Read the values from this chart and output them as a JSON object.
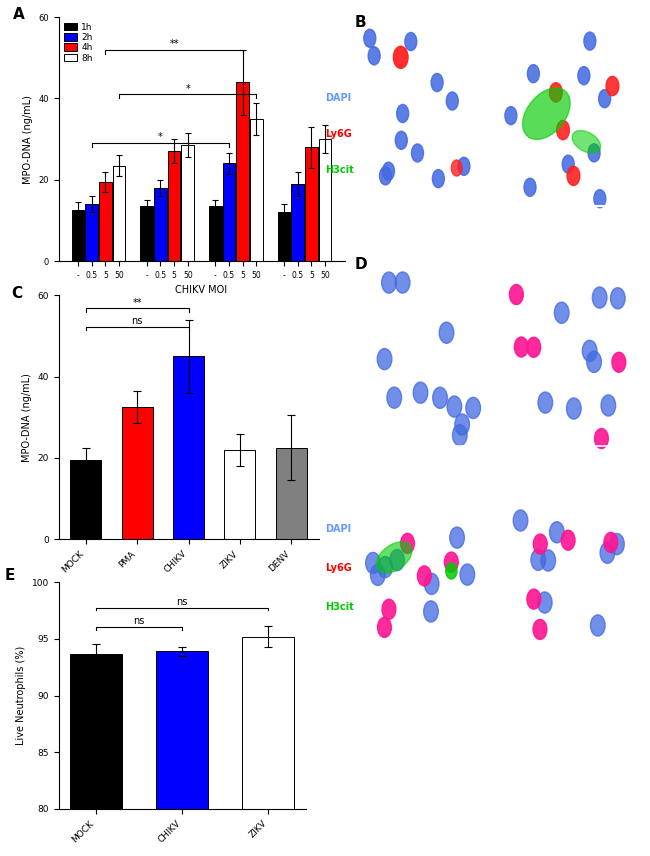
{
  "panel_A": {
    "title": "A",
    "groups": [
      {
        "label": "-",
        "time": "1h",
        "value": 12.5,
        "err": 2.0
      },
      {
        "label": "0.5",
        "time": "1h",
        "value": 13.5,
        "err": 1.5
      },
      {
        "label": "5",
        "time": "1h",
        "value": 13.5,
        "err": 1.5
      },
      {
        "label": "50",
        "time": "1h",
        "value": 12.0,
        "err": 2.0
      },
      {
        "label": "-",
        "time": "2h",
        "value": 14.0,
        "err": 2.0
      },
      {
        "label": "0.5",
        "time": "2h",
        "value": 18.0,
        "err": 2.0
      },
      {
        "label": "5",
        "time": "2h",
        "value": 24.0,
        "err": 2.5
      },
      {
        "label": "50",
        "time": "2h",
        "value": 19.0,
        "err": 3.0
      },
      {
        "label": "-",
        "time": "4h",
        "value": 19.5,
        "err": 2.5
      },
      {
        "label": "0.5",
        "time": "4h",
        "value": 27.0,
        "err": 3.0
      },
      {
        "label": "5",
        "time": "4h",
        "value": 44.0,
        "err": 8.0
      },
      {
        "label": "50",
        "time": "4h",
        "value": 28.0,
        "err": 5.0
      },
      {
        "label": "-",
        "time": "8h",
        "value": 23.5,
        "err": 2.5
      },
      {
        "label": "0.5",
        "time": "8h",
        "value": 28.5,
        "err": 3.0
      },
      {
        "label": "5",
        "time": "8h",
        "value": 35.0,
        "err": 4.0
      },
      {
        "label": "50",
        "time": "8h",
        "value": 30.0,
        "err": 3.5
      }
    ],
    "colors": {
      "1h": "#000000",
      "2h": "#0000FF",
      "4h": "#FF0000",
      "8h": "#FFFFFF"
    },
    "ylabel": "MPO-DNA (ng/mL)",
    "xlabel": "CHIKV MOI",
    "ylim": [
      0,
      60
    ],
    "yticks": [
      0,
      20,
      40,
      60
    ],
    "legend_labels": [
      "1h",
      "2h",
      "4h",
      "8h"
    ]
  },
  "panel_C": {
    "title": "C",
    "categories": [
      "MOCK",
      "PMA",
      "CHIKV",
      "ZIKV",
      "DENV"
    ],
    "values": [
      19.5,
      32.5,
      45.0,
      22.0,
      22.5
    ],
    "errors": [
      3.0,
      4.0,
      9.0,
      4.0,
      8.0
    ],
    "colors": [
      "#000000",
      "#FF0000",
      "#0000FF",
      "#FFFFFF",
      "#808080"
    ],
    "ylabel": "MPO-DNA (ng/mL)",
    "ylim": [
      0,
      60
    ],
    "yticks": [
      0,
      20,
      40,
      60
    ]
  },
  "panel_E": {
    "title": "E",
    "categories": [
      "MOCK",
      "CHIKV",
      "ZIKV"
    ],
    "values": [
      93.7,
      93.9,
      95.2
    ],
    "errors": [
      0.8,
      0.4,
      0.9
    ],
    "colors": [
      "#000000",
      "#0000FF",
      "#FFFFFF"
    ],
    "ylabel": "Live Neutrophils (%)",
    "ylim": [
      80,
      100
    ],
    "yticks": [
      80,
      85,
      90,
      95,
      100
    ]
  },
  "panel_B": {
    "title": "B",
    "legend": [
      {
        "label": "DAPI",
        "color": "#6699FF"
      },
      {
        "label": "Ly6G",
        "color": "#FF0000"
      },
      {
        "label": "H3cit",
        "color": "#00CC00"
      }
    ]
  },
  "panel_D": {
    "title": "D",
    "legend": [
      {
        "label": "DAPI",
        "color": "#6699FF"
      },
      {
        "label": "Ly6G",
        "color": "#FF0000"
      },
      {
        "label": "H3cit",
        "color": "#00CC00"
      }
    ]
  }
}
